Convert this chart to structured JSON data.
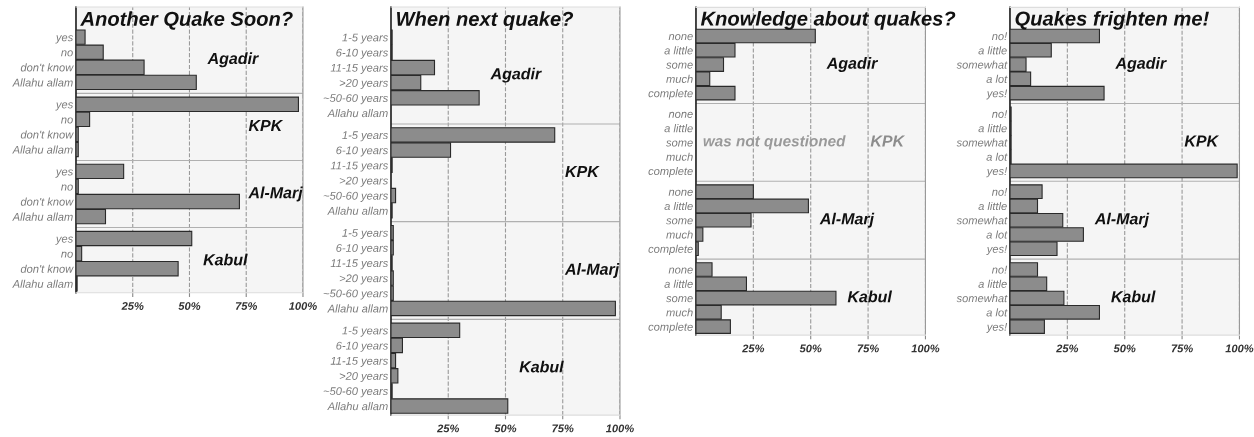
{
  "chart_data": [
    {
      "type": "bar",
      "orientation": "horizontal",
      "title": "Another Quake Soon?",
      "categories": [
        "yes",
        "no",
        "don't know",
        "Allahu allam",
        "yes",
        "no",
        "don't know",
        "Allahu allam",
        "yes",
        "no",
        "don't know",
        "Allahu allam",
        "yes",
        "no",
        "don't know",
        "Allahu allam"
      ],
      "series": [
        {
          "name": "Agadir",
          "color": "#8c8c8c",
          "values": [
            4,
            12,
            30,
            53,
            null,
            null,
            null,
            null,
            null,
            null,
            null,
            null,
            null,
            null,
            null,
            null
          ]
        },
        {
          "name": "KPK",
          "color": "#8c8c8c",
          "values": [
            null,
            null,
            null,
            null,
            98,
            6,
            1,
            1,
            null,
            null,
            null,
            null,
            null,
            null,
            null,
            null
          ]
        },
        {
          "name": "Al-Marj",
          "color": "#8c8c8c",
          "values": [
            null,
            null,
            null,
            null,
            null,
            null,
            null,
            null,
            21,
            1,
            72,
            13,
            null,
            null,
            null,
            null
          ]
        },
        {
          "name": "Kabul",
          "color": "#8c8c8c",
          "values": [
            null,
            null,
            null,
            null,
            null,
            null,
            null,
            null,
            null,
            null,
            null,
            null,
            51,
            2.5,
            45,
            0.5
          ]
        }
      ],
      "xlim": [
        0,
        100
      ],
      "xticks": [
        {
          "value": 25,
          "label": "25%"
        },
        {
          "value": 50,
          "label": "50%"
        },
        {
          "value": 75,
          "label": "75%"
        },
        {
          "value": 100,
          "label": "100%"
        }
      ],
      "grid": "x"
    },
    {
      "type": "bar",
      "orientation": "horizontal",
      "title": "When next quake?",
      "categories": [
        "1-5 years",
        "6-10 years",
        "11-15 years",
        ">20 years",
        "~50-60 years",
        "Allahu allam",
        "1-5 years",
        "6-10 years",
        "11-15 years",
        ">20 years",
        "~50-60 years",
        "Allahu allam",
        "1-5 years",
        "6-10 years",
        "11-15 years",
        ">20 years",
        "~50-60 years",
        "Allahu allam",
        "1-5 years",
        "6-10 years",
        "11-15 years",
        ">20 years",
        "~50-60 years",
        "Allahu allam"
      ],
      "series": [
        {
          "name": "Agadir",
          "color": "#8c8c8c",
          "values": [
            0.5,
            0.5,
            19,
            13,
            38.5,
            0,
            null,
            null,
            null,
            null,
            null,
            null,
            null,
            null,
            null,
            null,
            null,
            null,
            null,
            null,
            null,
            null,
            null,
            null
          ]
        },
        {
          "name": "KPK",
          "color": "#8c8c8c",
          "values": [
            null,
            null,
            null,
            null,
            null,
            null,
            71.5,
            26,
            0.5,
            0,
            2,
            0.5,
            null,
            null,
            null,
            null,
            null,
            null,
            null,
            null,
            null,
            null,
            null,
            null
          ]
        },
        {
          "name": "Al-Marj",
          "color": "#8c8c8c",
          "values": [
            null,
            null,
            null,
            null,
            null,
            null,
            null,
            null,
            null,
            null,
            null,
            null,
            1,
            1,
            0.5,
            1,
            1,
            98,
            null,
            null,
            null,
            null,
            null,
            null
          ]
        },
        {
          "name": "Kabul",
          "color": "#8c8c8c",
          "values": [
            null,
            null,
            null,
            null,
            null,
            null,
            null,
            null,
            null,
            null,
            null,
            null,
            null,
            null,
            null,
            null,
            null,
            null,
            30,
            5,
            2,
            3,
            0.5,
            51
          ]
        }
      ],
      "xlim": [
        0,
        100
      ],
      "xticks": [
        {
          "value": 25,
          "label": "25%"
        },
        {
          "value": 50,
          "label": "50%"
        },
        {
          "value": 75,
          "label": "75%"
        },
        {
          "value": 100,
          "label": "100%"
        }
      ],
      "grid": "x"
    },
    {
      "type": "bar",
      "orientation": "horizontal",
      "title": "Knowledge about quakes?",
      "categories": [
        "none",
        "a little",
        "some",
        "much",
        "complete",
        "none",
        "a little",
        "some",
        "much",
        "complete",
        "none",
        "a little",
        "some",
        "much",
        "complete",
        "none",
        "a little",
        "some",
        "much",
        "complete"
      ],
      "series": [
        {
          "name": "Agadir",
          "color": "#8c8c8c",
          "values": [
            52,
            17,
            12,
            6,
            17,
            null,
            null,
            null,
            null,
            null,
            null,
            null,
            null,
            null,
            null,
            null,
            null,
            null,
            null,
            null
          ]
        },
        {
          "name": "KPK",
          "color": "#8c8c8c",
          "values": [
            null,
            null,
            null,
            null,
            null,
            null,
            null,
            null,
            null,
            null,
            null,
            null,
            null,
            null,
            null,
            null,
            null,
            null,
            null,
            null
          ]
        },
        {
          "name": "Al-Marj",
          "color": "#8c8c8c",
          "values": [
            null,
            null,
            null,
            null,
            null,
            null,
            null,
            null,
            null,
            null,
            25,
            49,
            24,
            3,
            1,
            null,
            null,
            null,
            null,
            null
          ]
        },
        {
          "name": "Kabul",
          "color": "#8c8c8c",
          "values": [
            null,
            null,
            null,
            null,
            null,
            null,
            null,
            null,
            null,
            null,
            null,
            null,
            null,
            null,
            null,
            7,
            22,
            61,
            11,
            15
          ]
        }
      ],
      "annotations": [
        "was not questioned"
      ],
      "xlim": [
        0,
        100
      ],
      "xticks": [
        {
          "value": 25,
          "label": "25%"
        },
        {
          "value": 50,
          "label": "50%"
        },
        {
          "value": 75,
          "label": "75%"
        },
        {
          "value": 100,
          "label": "100%"
        }
      ],
      "grid": "x"
    },
    {
      "type": "bar",
      "orientation": "horizontal",
      "title": "Quakes frighten me!",
      "categories": [
        "no!",
        "a little",
        "somewhat",
        "a lot",
        "yes!",
        "no!",
        "a little",
        "somewhat",
        "a lot",
        "yes!",
        "no!",
        "a little",
        "somewhat",
        "a lot",
        "yes!",
        "no!",
        "a little",
        "somewhat",
        "a lot",
        "yes!"
      ],
      "series": [
        {
          "name": "Agadir",
          "color": "#8c8c8c",
          "values": [
            39,
            18,
            7,
            9,
            41,
            null,
            null,
            null,
            null,
            null,
            null,
            null,
            null,
            null,
            null,
            null,
            null,
            null,
            null,
            null
          ]
        },
        {
          "name": "KPK",
          "color": "#8c8c8c",
          "values": [
            null,
            null,
            null,
            null,
            null,
            0.5,
            0.5,
            0.5,
            0.5,
            99,
            null,
            null,
            null,
            null,
            null,
            null,
            null,
            null,
            null,
            null
          ]
        },
        {
          "name": "Al-Marj",
          "color": "#8c8c8c",
          "values": [
            null,
            null,
            null,
            null,
            null,
            null,
            null,
            null,
            null,
            null,
            14,
            12,
            23,
            32,
            20.5,
            null,
            null,
            null,
            null,
            null
          ]
        },
        {
          "name": "Kabul",
          "color": "#8c8c8c",
          "values": [
            null,
            null,
            null,
            null,
            null,
            null,
            null,
            null,
            null,
            null,
            null,
            null,
            null,
            null,
            null,
            12,
            16,
            23.5,
            39,
            15
          ]
        }
      ],
      "xlim": [
        0,
        100
      ],
      "xticks": [
        {
          "value": 25,
          "label": "25%"
        },
        {
          "value": 50,
          "label": "50%"
        },
        {
          "value": 75,
          "label": "75%"
        },
        {
          "value": 100,
          "label": "100%"
        }
      ],
      "grid": "x"
    }
  ]
}
